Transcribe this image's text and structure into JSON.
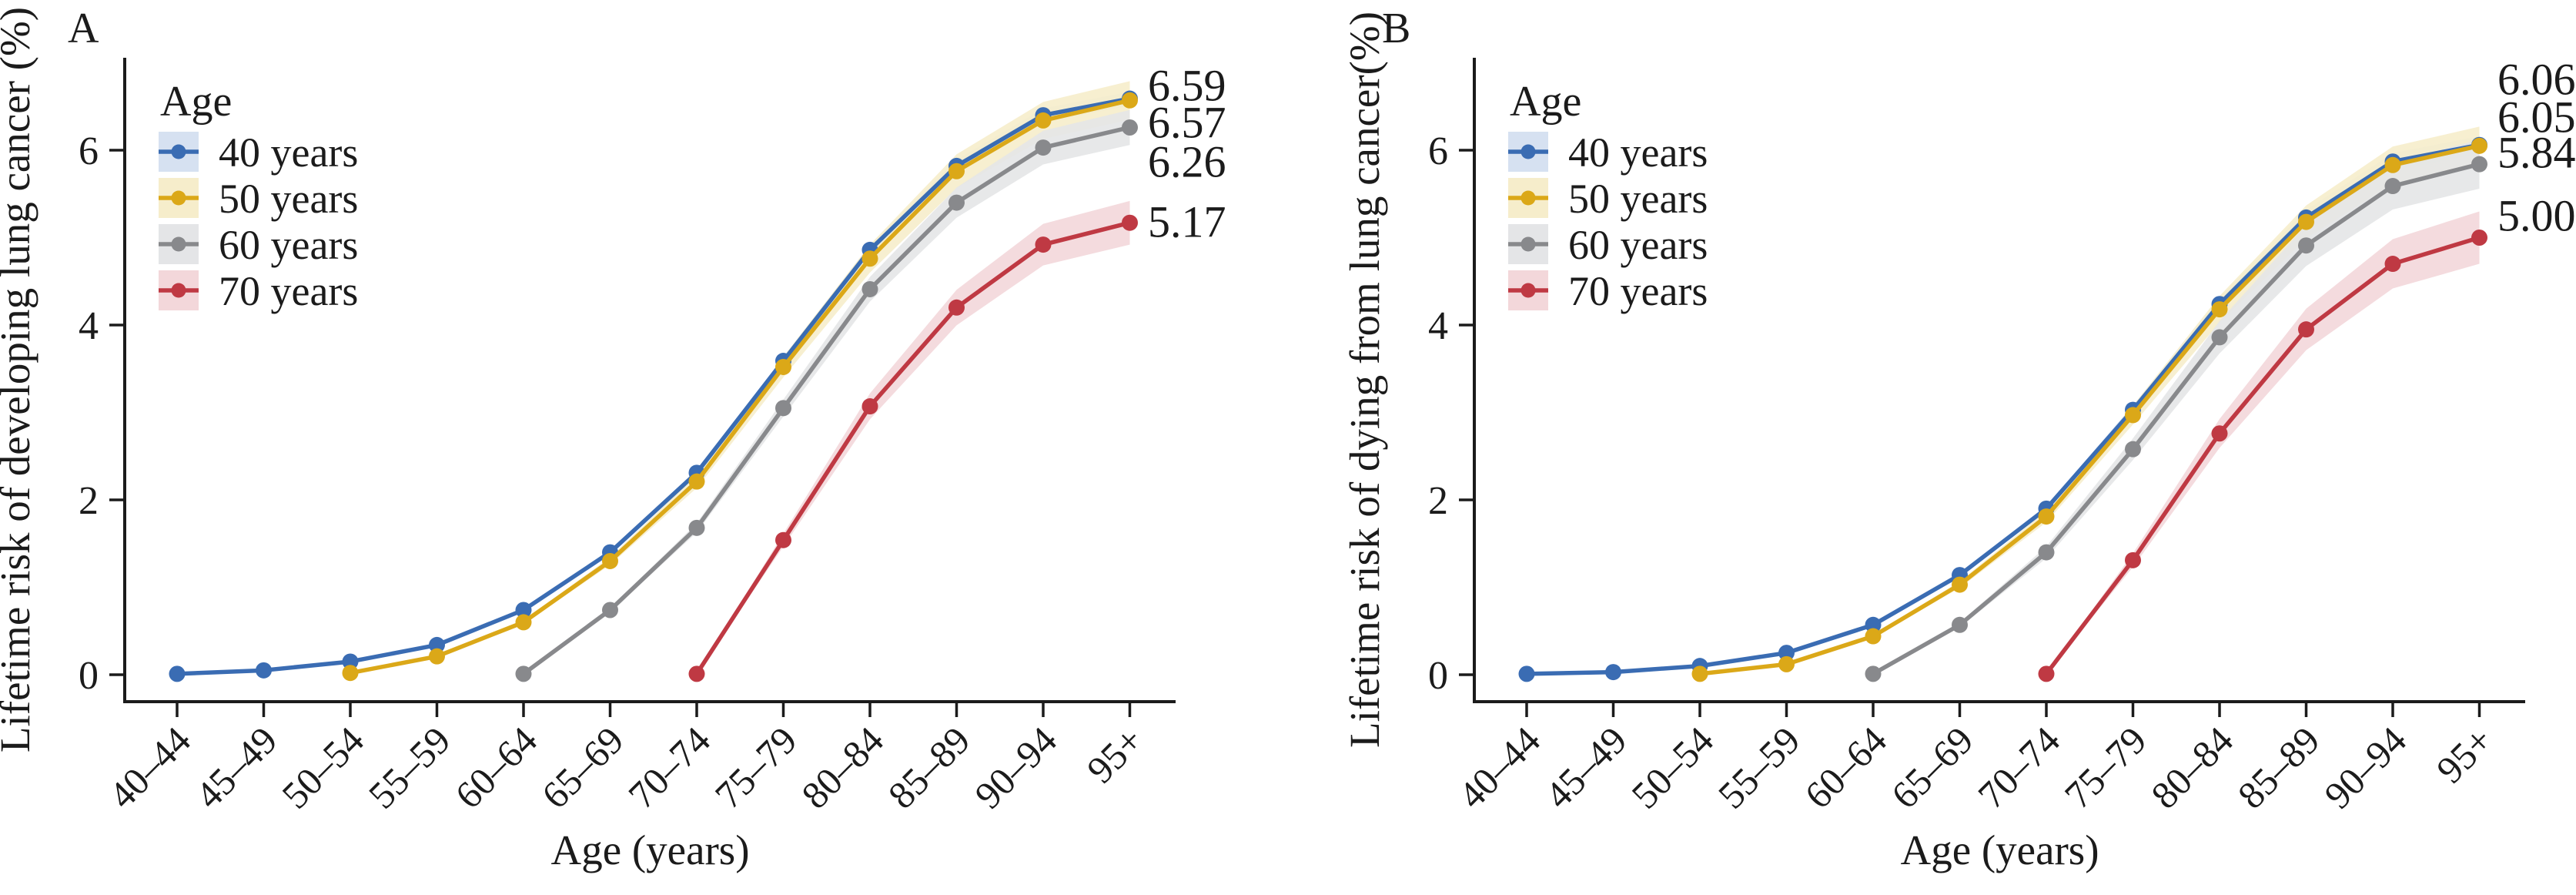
{
  "figure": {
    "background": "#ffffff",
    "axis_color": "#1b1b1b"
  },
  "chart_data": [
    {
      "type": "line",
      "panel_letter": "A",
      "ylabel": "Lifetime risk of developing lung cancer (%)",
      "xlabel": "Age (years)",
      "categories": [
        "40–44",
        "45–49",
        "50–54",
        "55–59",
        "60–64",
        "65–69",
        "70–74",
        "75–79",
        "80–84",
        "85–89",
        "90–94",
        "95+"
      ],
      "yticks": [
        "0",
        "2",
        "4",
        "6"
      ],
      "ylim": [
        0,
        7
      ],
      "grid": false,
      "legend": {
        "title": "Age",
        "position": "top-left",
        "items": [
          {
            "label": "40 years",
            "color": "#3a6cb3",
            "fill": "#d6e1f1"
          },
          {
            "label": "50 years",
            "color": "#dba818",
            "fill": "#f6edcb"
          },
          {
            "label": "60 years",
            "color": "#88898c",
            "fill": "#e4e5e7"
          },
          {
            "label": "70 years",
            "color": "#bf3943",
            "fill": "#f3d7da"
          }
        ]
      },
      "series": [
        {
          "name": "40 years",
          "color": "#3a6cb3",
          "ribbon": "#d6e1f1",
          "ci_end": 0.08,
          "start_index": 0,
          "values": [
            0.01,
            0.05,
            0.15,
            0.34,
            0.74,
            1.4,
            2.31,
            3.59,
            4.86,
            5.82,
            6.4,
            6.59
          ],
          "end_label": "6.59"
        },
        {
          "name": "50 years",
          "color": "#dba818",
          "ribbon": "#f6edcb",
          "ci_end": 0.22,
          "start_index": 2,
          "values": [
            0.02,
            0.21,
            0.6,
            1.3,
            2.21,
            3.52,
            4.76,
            5.76,
            6.34,
            6.57
          ],
          "end_label": "6.57"
        },
        {
          "name": "60 years",
          "color": "#88898c",
          "ribbon": "#e4e5e7",
          "ci_end": 0.2,
          "start_index": 4,
          "values": [
            0.01,
            0.74,
            1.68,
            3.05,
            4.41,
            5.4,
            6.03,
            6.26
          ],
          "end_label": "6.26"
        },
        {
          "name": "70 years",
          "color": "#bf3943",
          "ribbon": "#f3d7da",
          "ci_end": 0.25,
          "start_index": 6,
          "values": [
            0.01,
            1.54,
            3.07,
            4.2,
            4.92,
            5.17
          ],
          "end_label": "5.17"
        }
      ]
    },
    {
      "type": "line",
      "panel_letter": "B",
      "ylabel": "Lifetime risk of dying from lung cancer(%)",
      "xlabel": "Age (years)",
      "categories": [
        "40–44",
        "45–49",
        "50–54",
        "55–59",
        "60–64",
        "65–69",
        "70–74",
        "75–79",
        "80–84",
        "85–89",
        "90–94",
        "95+"
      ],
      "yticks": [
        "0",
        "2",
        "4",
        "6"
      ],
      "ylim": [
        0,
        7
      ],
      "grid": false,
      "legend": {
        "title": "Age",
        "position": "top-left",
        "items": [
          {
            "label": "40 years",
            "color": "#3a6cb3",
            "fill": "#d6e1f1"
          },
          {
            "label": "50 years",
            "color": "#dba818",
            "fill": "#f6edcb"
          },
          {
            "label": "60 years",
            "color": "#88898c",
            "fill": "#e4e5e7"
          },
          {
            "label": "70 years",
            "color": "#bf3943",
            "fill": "#f3d7da"
          }
        ]
      },
      "series": [
        {
          "name": "40 years",
          "color": "#3a6cb3",
          "ribbon": "#d6e1f1",
          "ci_end": 0.1,
          "start_index": 0,
          "values": [
            0.01,
            0.03,
            0.1,
            0.25,
            0.57,
            1.14,
            1.9,
            3.03,
            4.24,
            5.23,
            5.87,
            6.06
          ],
          "end_label": "6.06"
        },
        {
          "name": "50 years",
          "color": "#dba818",
          "ribbon": "#f6edcb",
          "ci_end": 0.22,
          "start_index": 2,
          "values": [
            0.01,
            0.12,
            0.44,
            1.03,
            1.81,
            2.97,
            4.18,
            5.18,
            5.83,
            6.05
          ],
          "end_label": "6.05"
        },
        {
          "name": "60 years",
          "color": "#88898c",
          "ribbon": "#e4e5e7",
          "ci_end": 0.28,
          "start_index": 4,
          "values": [
            0.01,
            0.57,
            1.4,
            2.58,
            3.86,
            4.91,
            5.59,
            5.84
          ],
          "end_label": "5.84"
        },
        {
          "name": "70 years",
          "color": "#bf3943",
          "ribbon": "#f3d7da",
          "ci_end": 0.3,
          "start_index": 6,
          "values": [
            0.01,
            1.31,
            2.76,
            3.95,
            4.7,
            5.0
          ],
          "end_label": "5.00"
        }
      ]
    }
  ]
}
